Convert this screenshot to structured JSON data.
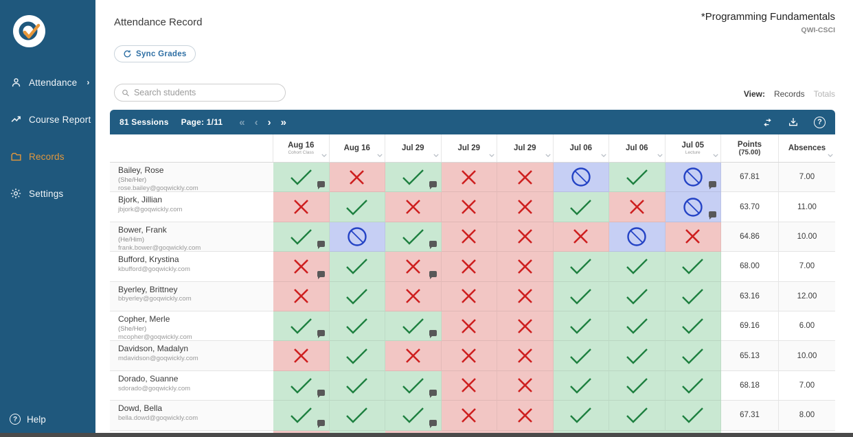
{
  "sidebar": {
    "items": [
      {
        "label": "Attendance",
        "icon": "attendance-person-icon",
        "has_chevron": true,
        "active": false
      },
      {
        "label": "Course Report",
        "icon": "trend-arrow-icon",
        "has_chevron": false,
        "active": false
      },
      {
        "label": "Records",
        "icon": "folder-icon",
        "has_chevron": false,
        "active": true
      },
      {
        "label": "Settings",
        "icon": "gear-icon",
        "has_chevron": false,
        "active": false
      }
    ],
    "help_label": "Help",
    "colors": {
      "background": "#1F587D",
      "active_item": "#E3973C",
      "text": "#F2F6F9"
    }
  },
  "header": {
    "page_title": "Attendance Record",
    "course_title": "*Programming Fundamentals",
    "course_code": "QWI-CSCI",
    "sync_button_label": "Sync Grades"
  },
  "search": {
    "placeholder": "Search students",
    "value": ""
  },
  "view_toggle": {
    "label": "View:",
    "options": [
      "Records",
      "Totals"
    ],
    "selected": "Records"
  },
  "toolbar": {
    "sessions_label": "81 Sessions",
    "page_label": "Page: 1/11",
    "pager_icons": [
      "first-page-icon",
      "prev-page-icon",
      "next-page-icon",
      "last-page-icon"
    ],
    "pager_disabled": [
      "first-page-icon",
      "prev-page-icon"
    ],
    "right_icons": [
      "swap-columns-icon",
      "download-icon",
      "help-icon"
    ]
  },
  "table": {
    "date_columns": [
      {
        "label": "Aug 16",
        "sublabel": "Cohort Class"
      },
      {
        "label": "Aug 16",
        "sublabel": ""
      },
      {
        "label": "Jul 29",
        "sublabel": ""
      },
      {
        "label": "Jul 29",
        "sublabel": ""
      },
      {
        "label": "Jul 29",
        "sublabel": ""
      },
      {
        "label": "Jul 06",
        "sublabel": ""
      },
      {
        "label": "Jul 06",
        "sublabel": ""
      },
      {
        "label": "Jul 05",
        "sublabel": "Lecture"
      }
    ],
    "points_header": {
      "label": "Points",
      "sublabel": "(75.00)"
    },
    "absences_header": {
      "label": "Absences"
    },
    "mark_colors": {
      "check": "#1E8040",
      "x": "#CE1F1F",
      "no": "#2443C5"
    },
    "cell_colors": {
      "check": "#C9E8D2",
      "x": "#F2C6C4",
      "no": "#C6CFF4"
    },
    "rows": [
      {
        "name": "Bailey, Rose",
        "pronouns": "(She/Her)",
        "email": "rose.bailey@goqwickly.com",
        "marks": [
          {
            "m": "check",
            "c": true
          },
          {
            "m": "x"
          },
          {
            "m": "check",
            "c": true
          },
          {
            "m": "x"
          },
          {
            "m": "x"
          },
          {
            "m": "no"
          },
          {
            "m": "check"
          },
          {
            "m": "no",
            "c": true
          }
        ],
        "points": "67.81",
        "absences": "7.00"
      },
      {
        "name": "Bjork, Jillian",
        "pronouns": "",
        "email": "jbjork@goqwickly.com",
        "marks": [
          {
            "m": "x"
          },
          {
            "m": "check"
          },
          {
            "m": "x"
          },
          {
            "m": "x"
          },
          {
            "m": "x"
          },
          {
            "m": "check"
          },
          {
            "m": "x"
          },
          {
            "m": "no",
            "c": true
          }
        ],
        "points": "63.70",
        "absences": "11.00"
      },
      {
        "name": "Bower, Frank",
        "pronouns": "(He/Him)",
        "email": "frank.bower@goqwickly.com",
        "marks": [
          {
            "m": "check",
            "c": true
          },
          {
            "m": "no"
          },
          {
            "m": "check",
            "c": true
          },
          {
            "m": "x"
          },
          {
            "m": "x"
          },
          {
            "m": "x"
          },
          {
            "m": "no"
          },
          {
            "m": "x"
          }
        ],
        "points": "64.86",
        "absences": "10.00"
      },
      {
        "name": "Bufford, Krystina",
        "pronouns": "",
        "email": "kbufford@goqwickly.com",
        "marks": [
          {
            "m": "x",
            "c": true
          },
          {
            "m": "check"
          },
          {
            "m": "x",
            "c": true
          },
          {
            "m": "x"
          },
          {
            "m": "x"
          },
          {
            "m": "check"
          },
          {
            "m": "check"
          },
          {
            "m": "check"
          }
        ],
        "points": "68.00",
        "absences": "7.00"
      },
      {
        "name": "Byerley, Brittney",
        "pronouns": "",
        "email": "bbyerley@goqwickly.com",
        "marks": [
          {
            "m": "x"
          },
          {
            "m": "check"
          },
          {
            "m": "x"
          },
          {
            "m": "x"
          },
          {
            "m": "x"
          },
          {
            "m": "check"
          },
          {
            "m": "check"
          },
          {
            "m": "check"
          }
        ],
        "points": "63.16",
        "absences": "12.00"
      },
      {
        "name": "Copher, Merle",
        "pronouns": "(She/Her)",
        "email": "mcopher@goqwickly.com",
        "marks": [
          {
            "m": "check",
            "c": true
          },
          {
            "m": "check"
          },
          {
            "m": "check",
            "c": true
          },
          {
            "m": "x"
          },
          {
            "m": "x"
          },
          {
            "m": "check"
          },
          {
            "m": "check"
          },
          {
            "m": "check"
          }
        ],
        "points": "69.16",
        "absences": "6.00"
      },
      {
        "name": "Davidson, Madalyn",
        "pronouns": "",
        "email": "mdavidson@goqwickly.com",
        "marks": [
          {
            "m": "x"
          },
          {
            "m": "check"
          },
          {
            "m": "x"
          },
          {
            "m": "x"
          },
          {
            "m": "x"
          },
          {
            "m": "check"
          },
          {
            "m": "check"
          },
          {
            "m": "check"
          }
        ],
        "points": "65.13",
        "absences": "10.00"
      },
      {
        "name": "Dorado, Suanne",
        "pronouns": "",
        "email": "sdorado@goqwickly.com",
        "marks": [
          {
            "m": "check",
            "c": true
          },
          {
            "m": "check"
          },
          {
            "m": "check",
            "c": true
          },
          {
            "m": "x"
          },
          {
            "m": "x"
          },
          {
            "m": "check"
          },
          {
            "m": "check"
          },
          {
            "m": "check"
          }
        ],
        "points": "68.18",
        "absences": "7.00"
      },
      {
        "name": "Dowd, Bella",
        "pronouns": "",
        "email": "bella.dowd@goqwickly.com",
        "marks": [
          {
            "m": "check",
            "c": true
          },
          {
            "m": "check"
          },
          {
            "m": "check",
            "c": true
          },
          {
            "m": "x"
          },
          {
            "m": "x"
          },
          {
            "m": "check"
          },
          {
            "m": "check"
          },
          {
            "m": "check"
          }
        ],
        "points": "67.31",
        "absences": "8.00"
      }
    ],
    "partial_next_row_marks": [
      "x",
      "check",
      "x",
      "x",
      "x",
      "check",
      "check",
      "check"
    ]
  }
}
